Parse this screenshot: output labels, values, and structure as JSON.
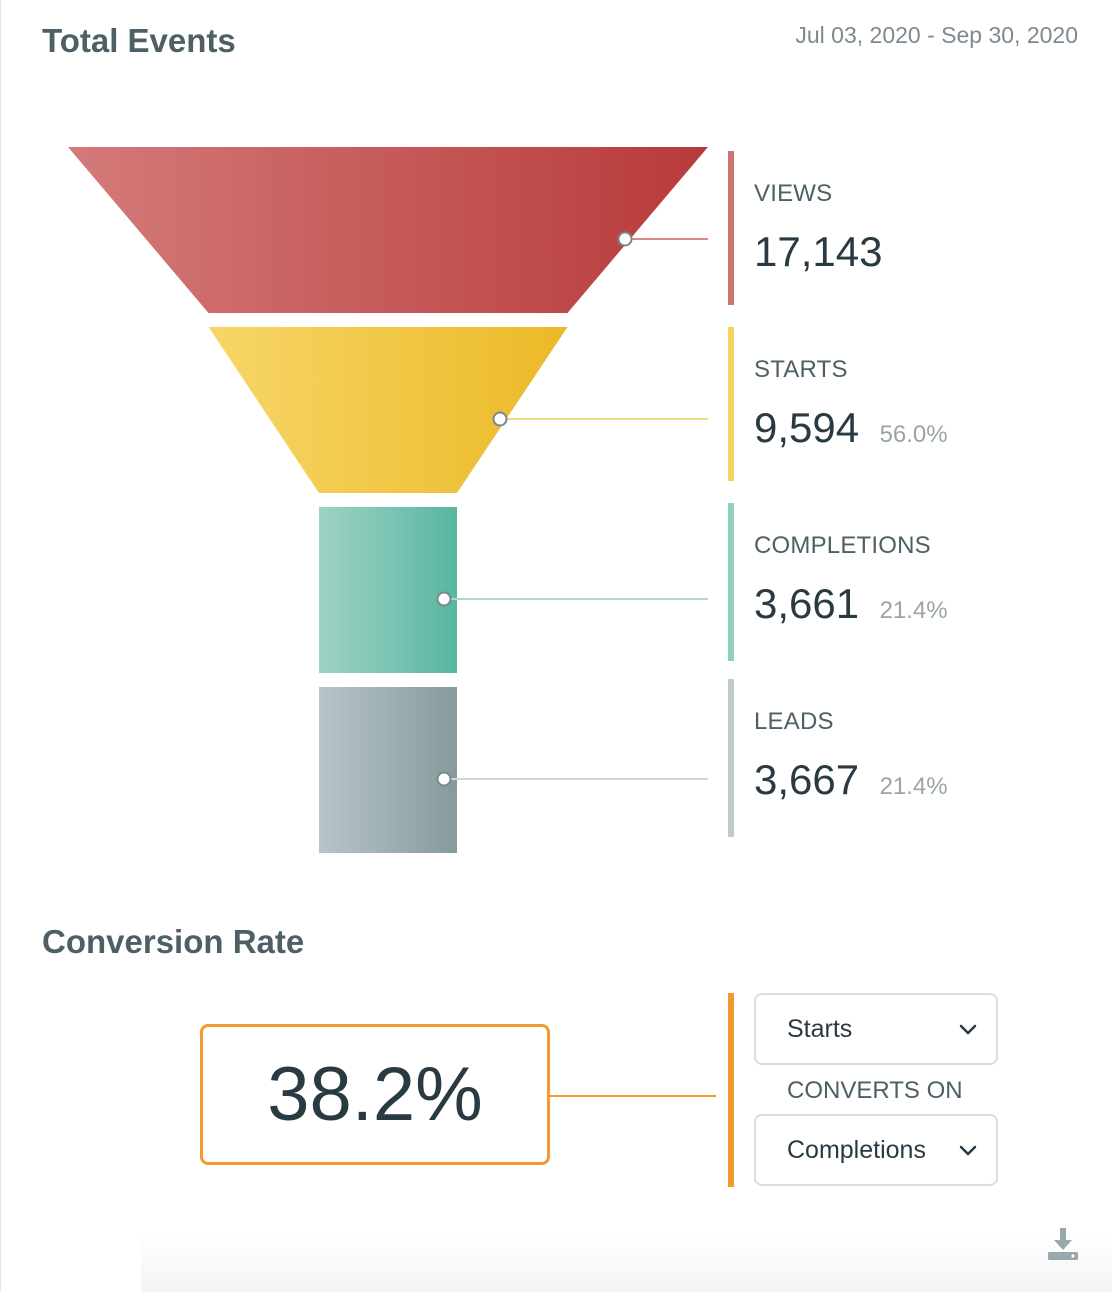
{
  "header": {
    "title": "Total Events",
    "date_range": "Jul 03, 2020 - Sep 30, 2020"
  },
  "chart_data": {
    "type": "funnel",
    "title": "Total Events",
    "stages": [
      {
        "label": "VIEWS",
        "value": 17143,
        "value_text": "17,143",
        "percent_text": "",
        "color": "#c94b4b"
      },
      {
        "label": "STARTS",
        "value": 9594,
        "value_text": "9,594",
        "percent_text": "56.0%",
        "color": "#f0c23c"
      },
      {
        "label": "COMPLETIONS",
        "value": 3661,
        "value_text": "3,661",
        "percent_text": "21.4%",
        "color": "#6fc4b1"
      },
      {
        "label": "LEADS",
        "value": 3667,
        "value_text": "3,667",
        "percent_text": "21.4%",
        "color": "#a6b6b9"
      }
    ]
  },
  "conversion": {
    "title": "Conversion Rate",
    "rate": "38.2%",
    "from_select": "Starts",
    "converts_on_label": "CONVERTS ON",
    "to_select": "Completions",
    "accent_color": "#f29a2e"
  },
  "icons": {
    "dropdown": "chevron-down-icon",
    "download": "download-icon"
  }
}
